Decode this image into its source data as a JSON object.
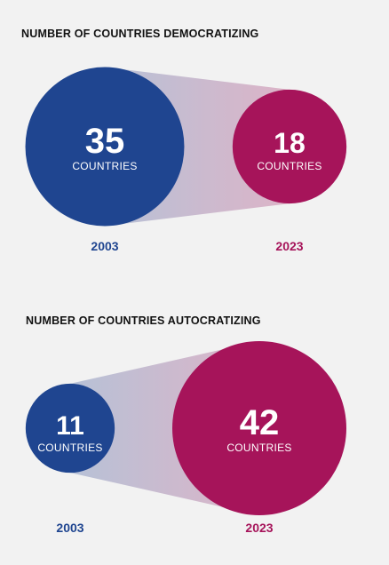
{
  "colors": {
    "year_2003": "#1f4590",
    "year_2023": "#a6145a",
    "background": "#f2f2f2"
  },
  "chart_data": [
    {
      "type": "bubble",
      "title": "NUMBER OF COUNTRIES DEMOCRATIZING",
      "categories": [
        "2003",
        "2023"
      ],
      "values": [
        35,
        18
      ],
      "value_label": "COUNTRIES"
    },
    {
      "type": "bubble",
      "title": "NUMBER OF COUNTRIES AUTOCRATIZING",
      "categories": [
        "2003",
        "2023"
      ],
      "values": [
        11,
        42
      ],
      "value_label": "COUNTRIES"
    }
  ]
}
